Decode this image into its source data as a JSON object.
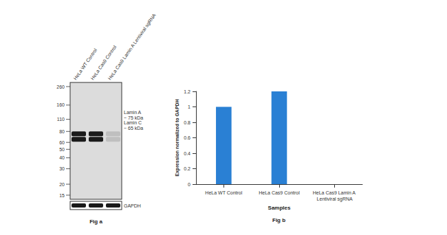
{
  "chart_data": {
    "type": "bar",
    "categories": [
      "HeLa WT Control",
      "HeLa Cas9 Control",
      "HeLa Cas9 Lamin A Lentiviral sgRNA"
    ],
    "values": [
      1,
      1.2,
      0
    ],
    "color": "#2a80d4",
    "xlabel": "Samples",
    "ylabel": "Expression normalized to GAPDH",
    "ylim": [
      0,
      1.2
    ],
    "yticks": [
      0,
      0.2,
      0.4,
      0.6,
      0.8,
      1,
      1.2
    ],
    "grid": false
  },
  "chart_caption": "Fig b",
  "blot": {
    "caption": "Fig a",
    "lanes": [
      "HeLa WT Control",
      "HeLa Cas9 Control",
      "HeLa Cas9 Lamin A Lentiviral sgRNA"
    ],
    "ladder_kda": [
      260,
      160,
      110,
      80,
      60,
      50,
      40,
      30,
      20,
      15
    ],
    "bands": [
      {
        "label": "Lamin A",
        "size_label": "~ 75 kDa",
        "kda": 75
      },
      {
        "label": "Lamin C",
        "size_label": "~ 65 kDa",
        "kda": 65
      }
    ],
    "loading_control": "GAPDH"
  }
}
